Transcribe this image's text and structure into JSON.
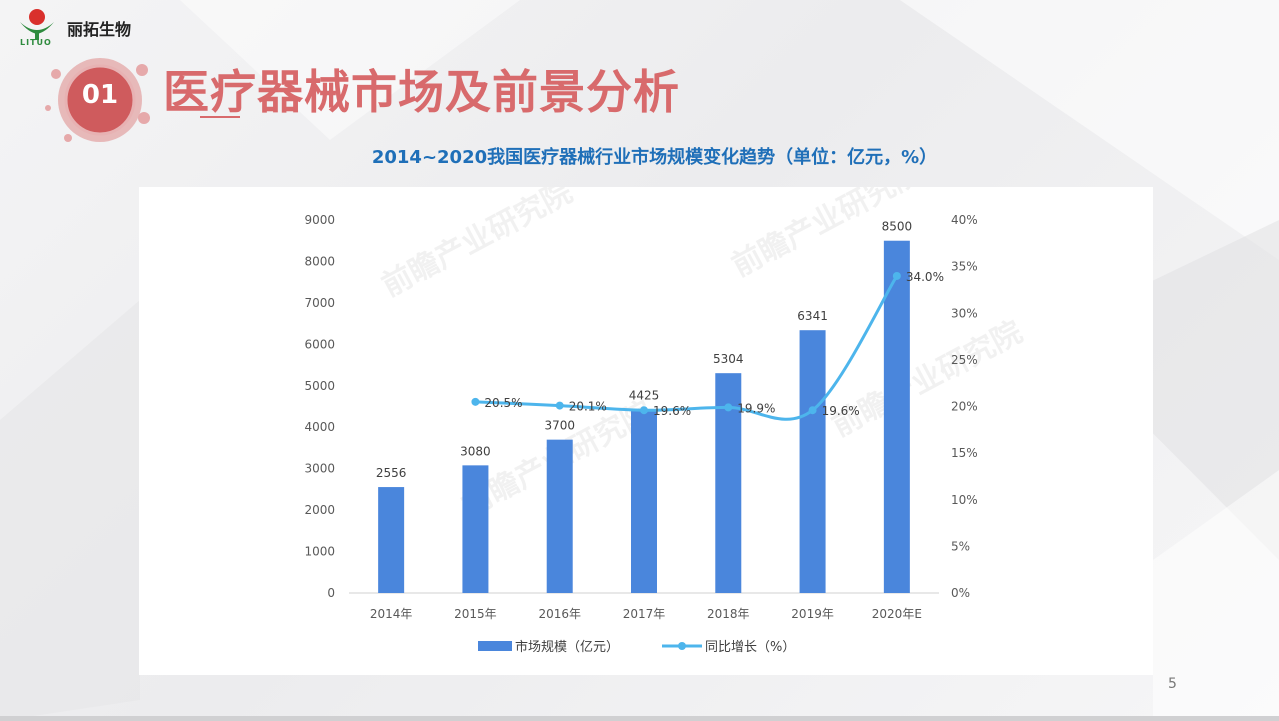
{
  "logo": {
    "name": "丽拓生物",
    "sub": "LITUO"
  },
  "section": {
    "number": "01",
    "title": "医疗器械市场及前景分析"
  },
  "chart_heading": "2014~2020我国医疗器械行业市场规模变化趋势（单位：亿元，%）",
  "page_number": "5",
  "watermark": "前瞻产业研究院",
  "colors": {
    "bar": "#4a86dc",
    "line": "#4db5ec",
    "title": "#d86a6c",
    "heading": "#1f6fb8"
  },
  "chart_data": {
    "type": "bar",
    "categories": [
      "2014年",
      "2015年",
      "2016年",
      "2017年",
      "2018年",
      "2019年",
      "2020年E"
    ],
    "series": [
      {
        "name": "市场规模（亿元）",
        "type": "bar",
        "axis": "left",
        "values": [
          2556,
          3080,
          3700,
          4425,
          5304,
          6341,
          8500
        ],
        "labels": [
          "2556",
          "3080",
          "3700",
          "4425",
          "5304",
          "6341",
          "8500"
        ]
      },
      {
        "name": "同比增长（%）",
        "type": "line",
        "axis": "right",
        "values": [
          null,
          20.5,
          20.1,
          19.6,
          19.9,
          19.6,
          34.0
        ],
        "labels": [
          "",
          "20.5%",
          "20.1%",
          "19.6%",
          "19.9%",
          "19.6%",
          "34.0%"
        ]
      }
    ],
    "y_left": {
      "min": 0,
      "max": 9000,
      "ticks": [
        "0",
        "1000",
        "2000",
        "3000",
        "4000",
        "5000",
        "6000",
        "7000",
        "8000",
        "9000"
      ]
    },
    "y_right": {
      "min": 0,
      "max": 40,
      "ticks": [
        "0%",
        "5%",
        "10%",
        "15%",
        "20%",
        "25%",
        "30%",
        "35%",
        "40%"
      ]
    },
    "grid": false,
    "legend_position": "bottom"
  }
}
